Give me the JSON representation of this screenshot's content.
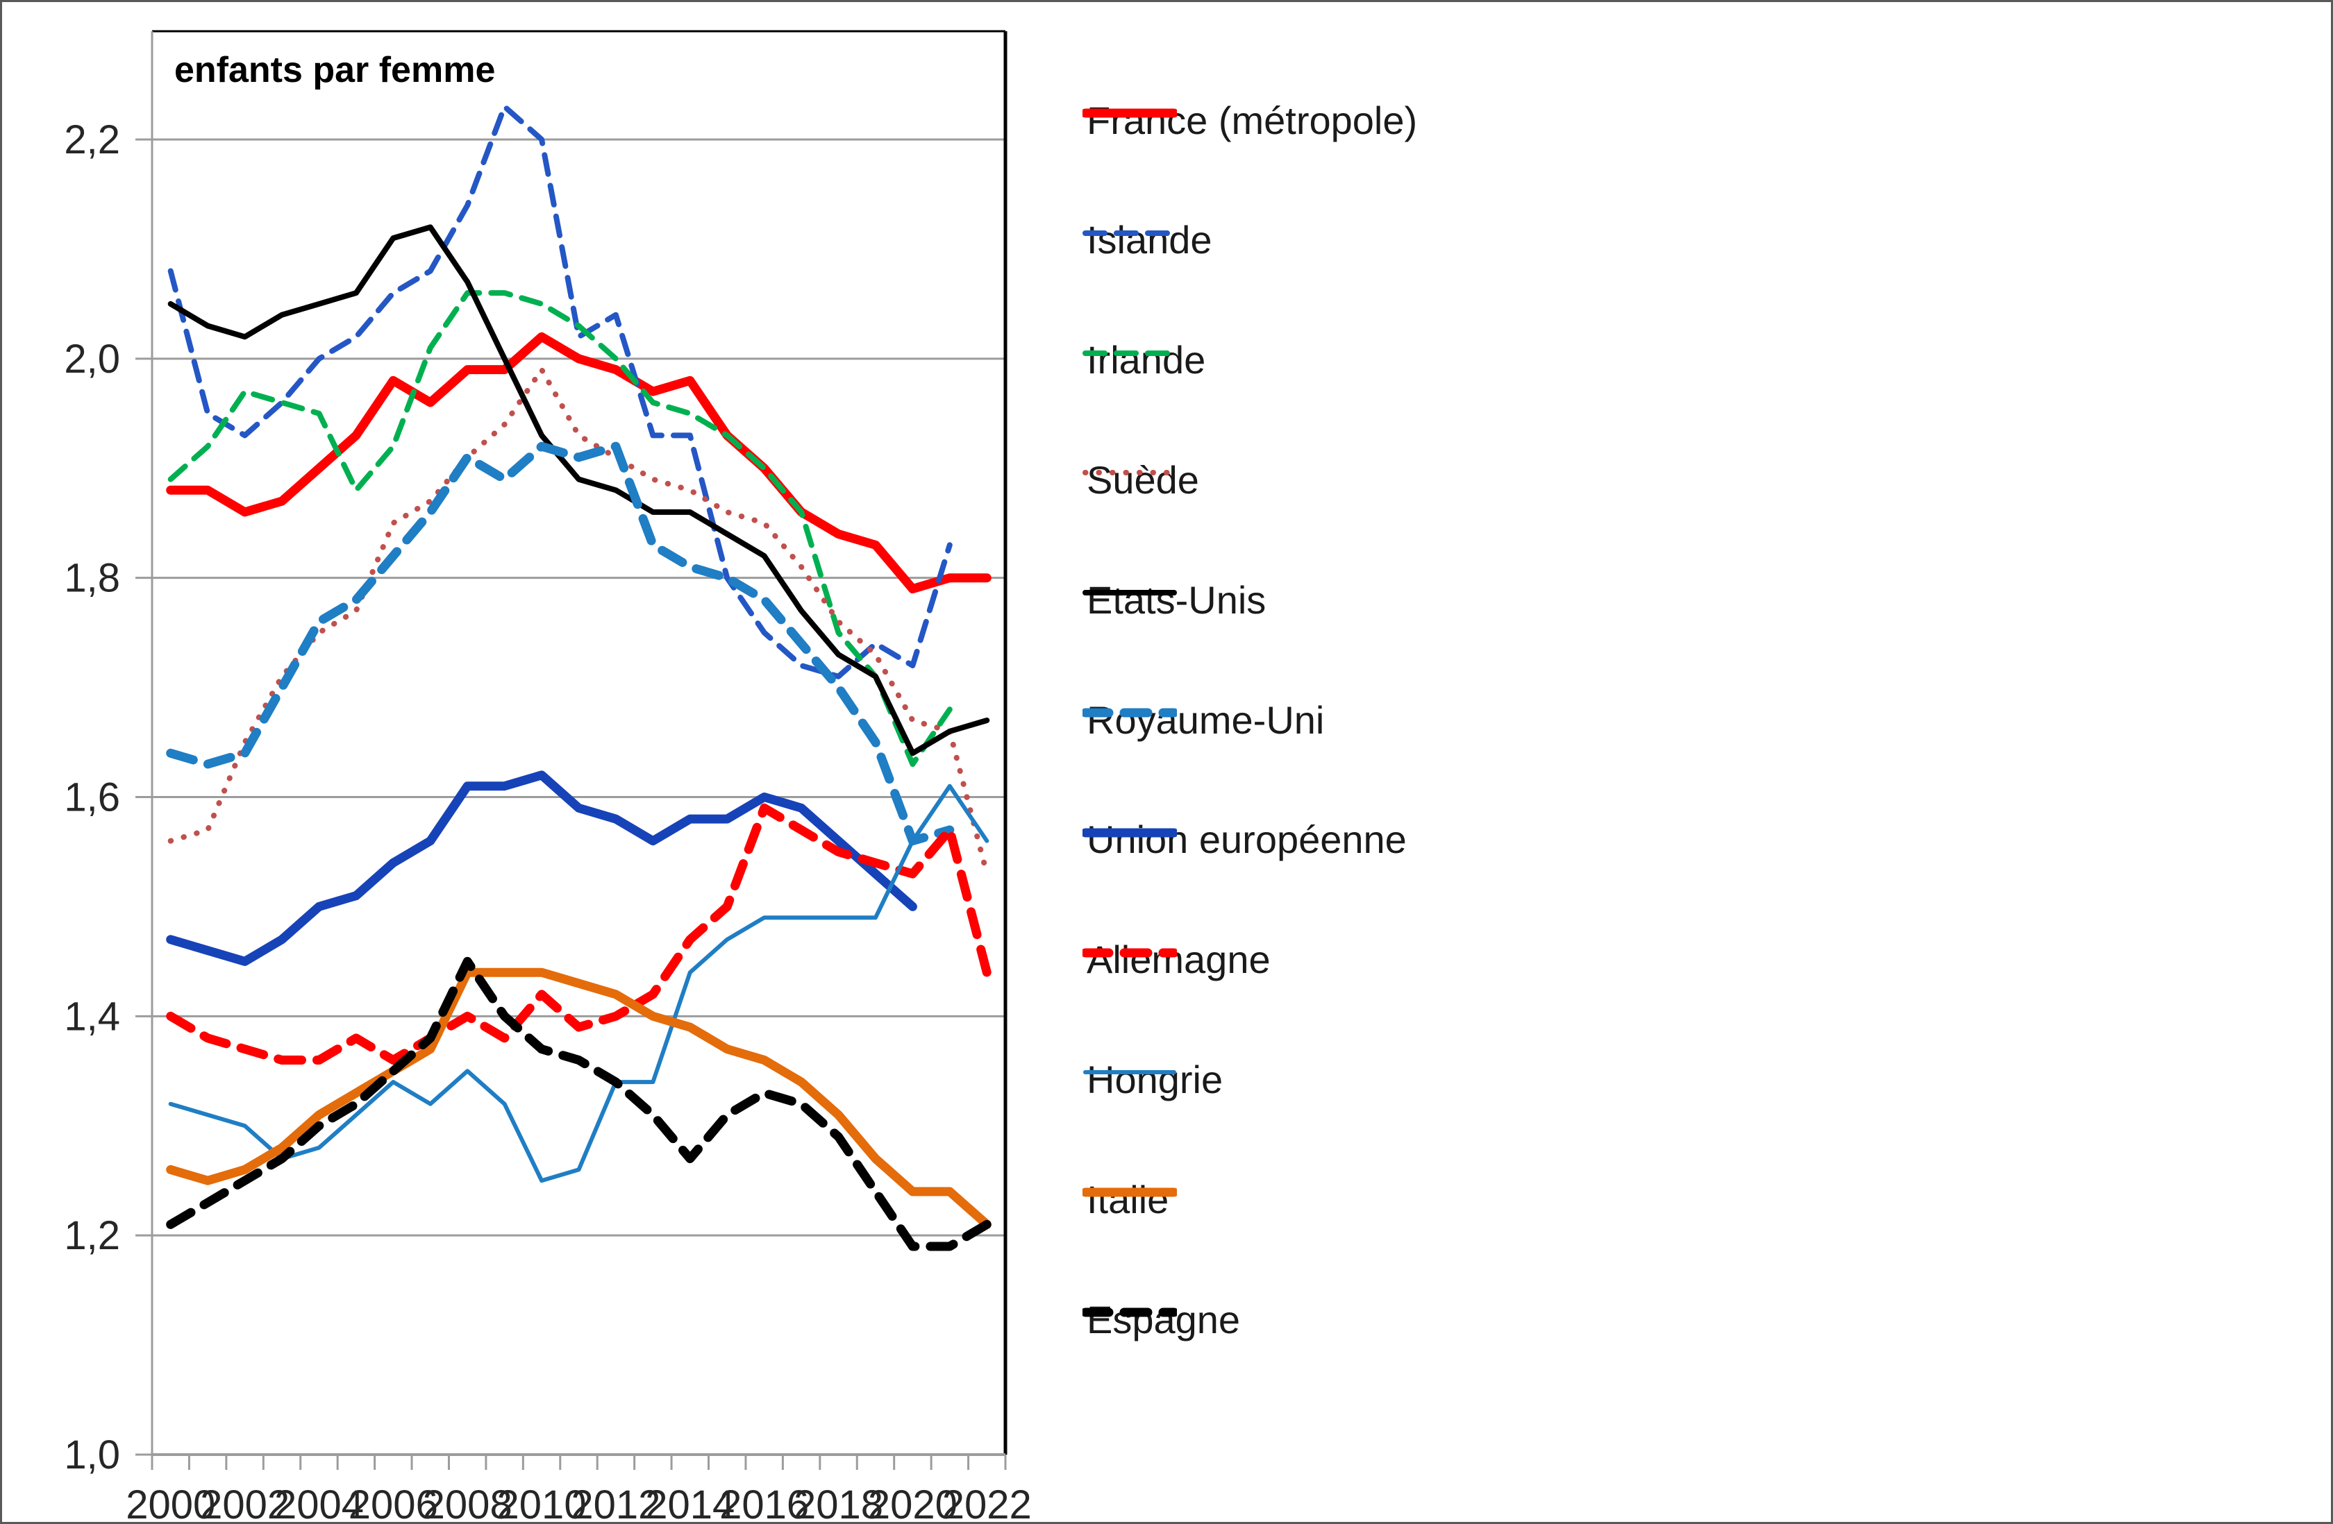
{
  "figure": {
    "title": "enfants par femme"
  },
  "y_axis": {
    "tick_labels": [
      "2,2",
      "2,0",
      "1,8",
      "1,6",
      "1,4",
      "1,2",
      "1,0"
    ],
    "min": 1.0,
    "max": 2.2
  },
  "x_axis": {
    "tick_labels": [
      "2000",
      "2002",
      "2004",
      "2006",
      "2008",
      "2010",
      "2012",
      "2014",
      "2016",
      "2018",
      "2020",
      "2022"
    ]
  },
  "chart_data": {
    "type": "line",
    "title": "enfants par femme",
    "xlabel": "",
    "ylabel": "enfants par femme",
    "ylim": [
      1.0,
      2.3
    ],
    "grid": true,
    "legend_position": "right",
    "x": [
      2000,
      2001,
      2002,
      2003,
      2004,
      2005,
      2006,
      2007,
      2008,
      2009,
      2010,
      2011,
      2012,
      2013,
      2014,
      2015,
      2016,
      2017,
      2018,
      2019,
      2020,
      2021,
      2022
    ],
    "series": [
      {
        "name": "France (métropole)",
        "color": "#FF0000",
        "style": "solid",
        "thickness": "thick",
        "values": [
          1.88,
          1.88,
          1.86,
          1.87,
          1.9,
          1.93,
          1.98,
          1.96,
          1.99,
          1.99,
          2.02,
          2.0,
          1.99,
          1.97,
          1.98,
          1.93,
          1.9,
          1.86,
          1.84,
          1.83,
          1.79,
          1.8,
          1.8
        ]
      },
      {
        "name": "Islande",
        "color": "#2457C5",
        "style": "dashed",
        "thickness": "medium",
        "values": [
          2.08,
          1.95,
          1.93,
          1.96,
          2.0,
          2.02,
          2.06,
          2.08,
          2.14,
          2.23,
          2.2,
          2.02,
          2.04,
          1.93,
          1.93,
          1.8,
          1.75,
          1.72,
          1.71,
          1.74,
          1.72,
          1.83,
          null
        ]
      },
      {
        "name": "Irlande",
        "color": "#00B050",
        "style": "dashed",
        "thickness": "medium",
        "values": [
          1.89,
          1.92,
          1.97,
          1.96,
          1.95,
          1.88,
          1.92,
          2.01,
          2.06,
          2.06,
          2.05,
          2.03,
          2.0,
          1.96,
          1.95,
          1.93,
          1.9,
          1.86,
          1.75,
          1.71,
          1.63,
          1.68,
          null
        ]
      },
      {
        "name": "Suède",
        "color": "#C0504D",
        "style": "dotted",
        "thickness": "medium",
        "values": [
          1.56,
          1.57,
          1.65,
          1.71,
          1.75,
          1.77,
          1.85,
          1.87,
          1.91,
          1.94,
          1.99,
          1.93,
          1.91,
          1.89,
          1.88,
          1.86,
          1.85,
          1.81,
          1.76,
          1.73,
          1.67,
          1.66,
          1.53
        ]
      },
      {
        "name": "Etats-Unis",
        "color": "#000000",
        "style": "solid",
        "thickness": "medium",
        "values": [
          2.05,
          2.03,
          2.02,
          2.04,
          2.05,
          2.06,
          2.11,
          2.12,
          2.07,
          2.0,
          1.93,
          1.89,
          1.88,
          1.86,
          1.86,
          1.84,
          1.82,
          1.77,
          1.73,
          1.71,
          1.64,
          1.66,
          1.67
        ]
      },
      {
        "name": "Royaume-Uni",
        "color": "#1F7EC4",
        "style": "dashed",
        "thickness": "thick",
        "values": [
          1.64,
          1.63,
          1.64,
          1.7,
          1.76,
          1.78,
          1.82,
          1.86,
          1.91,
          1.89,
          1.92,
          1.91,
          1.92,
          1.83,
          1.81,
          1.8,
          1.78,
          1.74,
          1.7,
          1.65,
          1.56,
          1.57,
          null
        ]
      },
      {
        "name": "Union européenne",
        "color": "#1743B8",
        "style": "solid",
        "thickness": "thick",
        "values": [
          1.47,
          1.46,
          1.45,
          1.47,
          1.5,
          1.51,
          1.54,
          1.56,
          1.61,
          1.61,
          1.62,
          1.59,
          1.58,
          1.56,
          1.58,
          1.58,
          1.6,
          1.59,
          1.56,
          1.53,
          1.5,
          null,
          null
        ]
      },
      {
        "name": "Allemagne",
        "color": "#FF0000",
        "style": "dashed",
        "thickness": "thick",
        "values": [
          1.4,
          1.38,
          1.37,
          1.36,
          1.36,
          1.38,
          1.36,
          1.38,
          1.4,
          1.38,
          1.42,
          1.39,
          1.4,
          1.42,
          1.47,
          1.5,
          1.59,
          1.57,
          1.55,
          1.54,
          1.53,
          1.57,
          1.44
        ]
      },
      {
        "name": "Hongrie",
        "color": "#1F7EC4",
        "style": "solid",
        "thickness": "thin",
        "values": [
          1.32,
          1.31,
          1.3,
          1.27,
          1.28,
          1.31,
          1.34,
          1.32,
          1.35,
          1.32,
          1.25,
          1.26,
          1.34,
          1.34,
          1.44,
          1.47,
          1.49,
          1.49,
          1.49,
          1.49,
          1.56,
          1.61,
          1.56
        ]
      },
      {
        "name": "Italie",
        "color": "#E46C0A",
        "style": "solid",
        "thickness": "thick",
        "values": [
          1.26,
          1.25,
          1.26,
          1.28,
          1.31,
          1.33,
          1.35,
          1.37,
          1.44,
          1.44,
          1.44,
          1.43,
          1.42,
          1.4,
          1.39,
          1.37,
          1.36,
          1.34,
          1.31,
          1.27,
          1.24,
          1.24,
          1.21
        ]
      },
      {
        "name": "Espagne",
        "color": "#000000",
        "style": "dashed",
        "thickness": "thick",
        "values": [
          1.21,
          1.23,
          1.25,
          1.27,
          1.3,
          1.32,
          1.35,
          1.38,
          1.45,
          1.4,
          1.37,
          1.36,
          1.34,
          1.31,
          1.27,
          1.31,
          1.33,
          1.32,
          1.29,
          1.24,
          1.19,
          1.19,
          1.21
        ]
      }
    ]
  }
}
